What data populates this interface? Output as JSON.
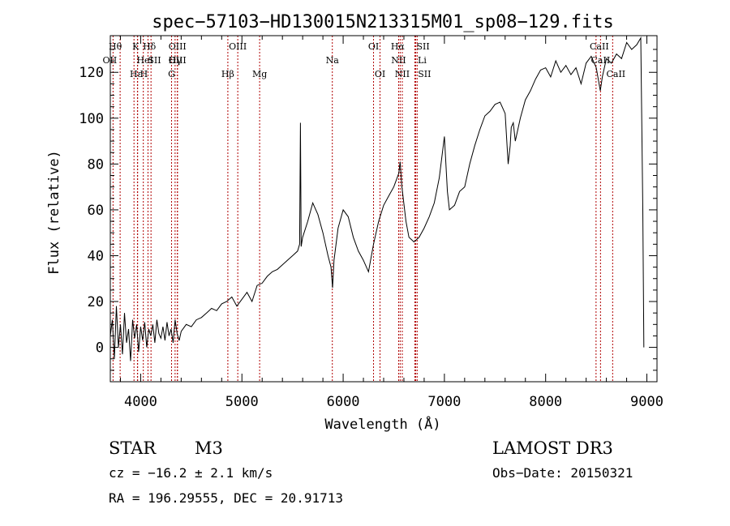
{
  "title": "spec−57103−HD130015N213315M01_sp08−129.fits",
  "chart_data": {
    "type": "line",
    "xlabel": "Wavelength (Å)",
    "ylabel": "Flux (relative)",
    "xlim": [
      3700,
      9100
    ],
    "ylim": [
      -15,
      136
    ],
    "xticks": [
      4000,
      5000,
      6000,
      7000,
      8000,
      9000
    ],
    "yticks": [
      0,
      20,
      40,
      60,
      80,
      100,
      120
    ],
    "grid": false,
    "series": [
      {
        "x": [
          3700,
          3720,
          3740,
          3760,
          3780,
          3800,
          3820,
          3840,
          3860,
          3880,
          3900,
          3920,
          3940,
          3960,
          3980,
          4000,
          4020,
          4040,
          4060,
          4080,
          4100,
          4120,
          4140,
          4160,
          4180,
          4200,
          4220,
          4240,
          4260,
          4280,
          4300,
          4320,
          4340,
          4360,
          4380,
          4400,
          4450,
          4500,
          4550,
          4600,
          4650,
          4700,
          4750,
          4800,
          4850,
          4900,
          4950,
          5000,
          5050,
          5100,
          5150,
          5200,
          5250,
          5300,
          5350,
          5400,
          5450,
          5500,
          5550,
          5570,
          5578,
          5585,
          5600,
          5650,
          5700,
          5750,
          5800,
          5850,
          5880,
          5895,
          5910,
          5950,
          6000,
          6050,
          6100,
          6150,
          6200,
          6250,
          6300,
          6350,
          6400,
          6450,
          6500,
          6550,
          6563,
          6580,
          6620,
          6650,
          6700,
          6750,
          6800,
          6850,
          6900,
          6950,
          7000,
          7030,
          7050,
          7100,
          7150,
          7200,
          7250,
          7300,
          7350,
          7400,
          7450,
          7500,
          7550,
          7600,
          7630,
          7650,
          7660,
          7680,
          7700,
          7750,
          7800,
          7850,
          7900,
          7950,
          8000,
          8050,
          8100,
          8150,
          8200,
          8250,
          8300,
          8350,
          8400,
          8450,
          8500,
          8540,
          8560,
          8600,
          8650,
          8700,
          8750,
          8800,
          8850,
          8900,
          8940,
          8960,
          8970
        ],
        "y": [
          5,
          12,
          -5,
          18,
          0,
          10,
          -3,
          15,
          2,
          8,
          -6,
          12,
          4,
          10,
          -2,
          9,
          3,
          11,
          0,
          8,
          5,
          10,
          2,
          12,
          6,
          4,
          9,
          3,
          11,
          5,
          8,
          2,
          12,
          6,
          3,
          7,
          10,
          9,
          12,
          13,
          15,
          17,
          16,
          19,
          20,
          22,
          18,
          21,
          24,
          20,
          27,
          28,
          31,
          33,
          34,
          36,
          38,
          40,
          42,
          45,
          98,
          44,
          48,
          55,
          63,
          58,
          50,
          40,
          35,
          26,
          38,
          52,
          60,
          57,
          48,
          42,
          38,
          33,
          45,
          55,
          62,
          66,
          70,
          76,
          81,
          70,
          55,
          48,
          46,
          48,
          52,
          57,
          63,
          74,
          92,
          68,
          60,
          62,
          68,
          70,
          80,
          88,
          95,
          101,
          103,
          106,
          107,
          102,
          80,
          88,
          96,
          98,
          90,
          100,
          108,
          112,
          117,
          121,
          122,
          118,
          125,
          120,
          123,
          119,
          122,
          115,
          124,
          127,
          122,
          112,
          118,
          126,
          124,
          128,
          126,
          133,
          130,
          132,
          135,
          60,
          0
        ]
      }
    ],
    "lines": [
      "Hθ",
      "K",
      "Hδ",
      "OIII",
      "OIII",
      "OII",
      "HeI",
      "SII",
      "Hγ",
      "OIII",
      "Hε",
      "H",
      "G",
      "Hβ",
      "Mg",
      "Na",
      "OI",
      "OI",
      "Hα",
      "SII",
      "NII",
      "Li",
      "NII",
      "SII",
      "CaII",
      "CaII",
      "CaII"
    ]
  },
  "info": {
    "class_label": "STAR",
    "subclass": "M3",
    "survey": "LAMOST DR3",
    "cz": "cz = −16.2 ± 2.1 km/s",
    "obs_date": "Obs−Date: 20150321",
    "coords": "RA = 196.29555, DEC =  20.91713"
  }
}
